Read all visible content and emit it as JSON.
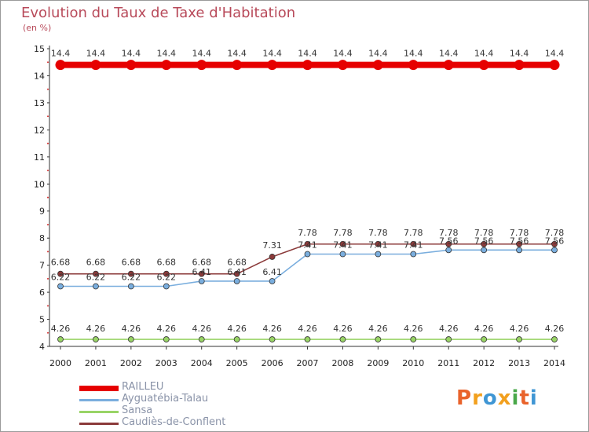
{
  "header": {
    "title": "Evolution du Taux de Taxe d'Habitation",
    "unit": "(en %)"
  },
  "logo": {
    "text": "Proxiti",
    "colors": [
      "#e9632b",
      "#f2a01e",
      "#3f96d4",
      "#f2a01e",
      "#4aa84a",
      "#e9632b",
      "#3f96d4"
    ]
  },
  "chart_data": {
    "type": "line",
    "title": "Evolution du Taux de Taxe d'Habitation",
    "ylabel": "(en %)",
    "xlabel": "",
    "ylim": [
      4,
      15
    ],
    "yticks": [
      "4",
      "5",
      "6",
      "7",
      "8",
      "9",
      "10",
      "11",
      "12",
      "13",
      "14",
      "15"
    ],
    "categories": [
      "2000",
      "2001",
      "2002",
      "2003",
      "2004",
      "2005",
      "2006",
      "2007",
      "2008",
      "2009",
      "2010",
      "2011",
      "2012",
      "2013",
      "2014"
    ],
    "legend_position": "bottom-left",
    "series": [
      {
        "name": "RAILLEU",
        "color": "#e60000",
        "values": [
          14.4,
          14.4,
          14.4,
          14.4,
          14.4,
          14.4,
          14.4,
          14.4,
          14.4,
          14.4,
          14.4,
          14.4,
          14.4,
          14.4,
          14.4
        ],
        "labels": [
          "14.4",
          "14.4",
          "14.4",
          "14.4",
          "14.4",
          "14.4",
          "14.4",
          "14.4",
          "14.4",
          "14.4",
          "14.4",
          "14.4",
          "14.4",
          "14.4",
          "14.4"
        ]
      },
      {
        "name": "Ayguatébia-Talau",
        "color": "#7aaede",
        "values": [
          6.22,
          6.22,
          6.22,
          6.22,
          6.41,
          6.41,
          6.41,
          7.41,
          7.41,
          7.41,
          7.41,
          7.56,
          7.56,
          7.56,
          7.56
        ],
        "labels": [
          "6.22",
          "6.22",
          "6.22",
          "6.22",
          "6.41",
          "6.41",
          "6.41",
          "7.41",
          "7.41",
          "7.41",
          "7.41",
          "7.56",
          "7.56",
          "7.56",
          "7.56"
        ]
      },
      {
        "name": "Sansa",
        "color": "#99d466",
        "values": [
          4.26,
          4.26,
          4.26,
          4.26,
          4.26,
          4.26,
          4.26,
          4.26,
          4.26,
          4.26,
          4.26,
          4.26,
          4.26,
          4.26,
          4.26
        ],
        "labels": [
          "4.26",
          "4.26",
          "4.26",
          "4.26",
          "4.26",
          "4.26",
          "4.26",
          "4.26",
          "4.26",
          "4.26",
          "4.26",
          "4.26",
          "4.26",
          "4.26",
          "4.26"
        ]
      },
      {
        "name": "Caudiès-de-Conflent",
        "color": "#8b3a3a",
        "values": [
          6.68,
          6.68,
          6.68,
          6.68,
          6.68,
          6.68,
          7.31,
          7.78,
          7.78,
          7.78,
          7.78,
          7.78,
          7.78,
          7.78,
          7.78
        ],
        "labels": [
          "6.68",
          "6.68",
          "6.68",
          "6.68",
          "6.68",
          "6.68",
          "7.31",
          "7.78",
          "7.78",
          "7.78",
          "7.78",
          "7.78",
          "7.78",
          "7.78",
          "7.78"
        ]
      }
    ]
  }
}
